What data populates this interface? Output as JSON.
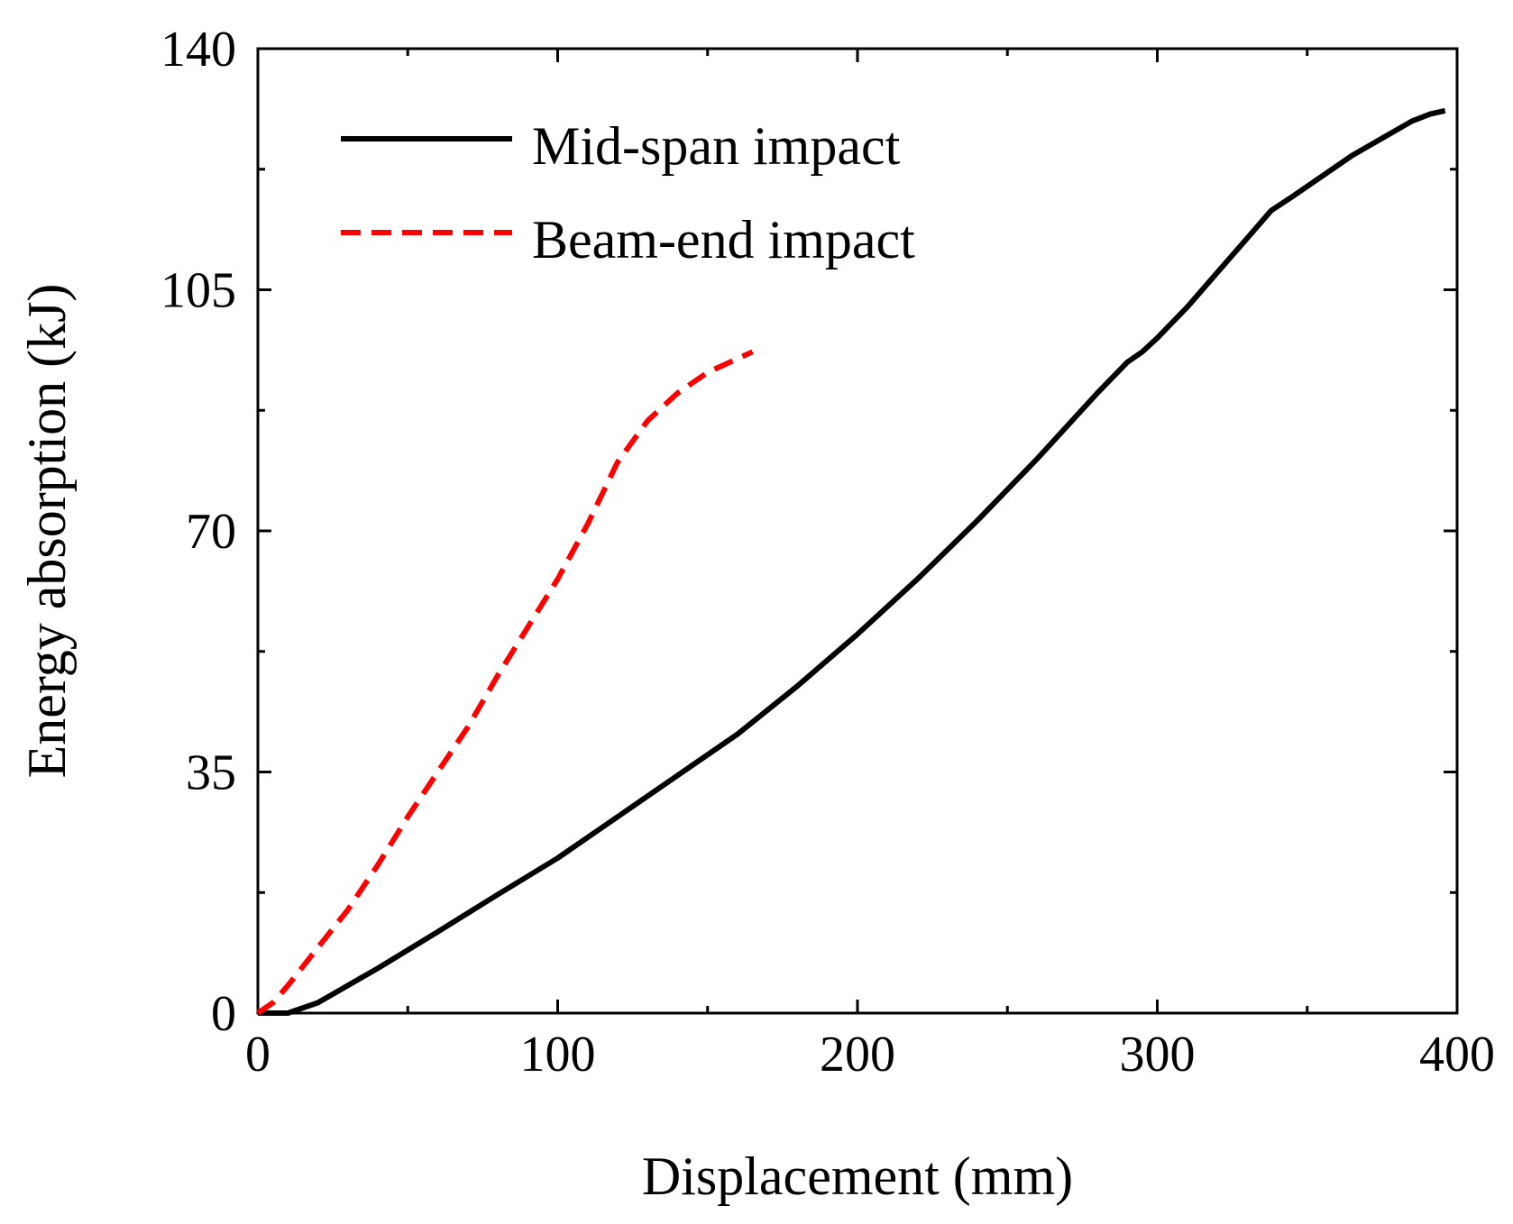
{
  "chart_data": {
    "type": "line",
    "xlabel": "Displacement (mm)",
    "ylabel": "Energy absorption (kJ)",
    "xlim": [
      0,
      400
    ],
    "ylim": [
      0,
      140
    ],
    "x_ticks": [
      0,
      100,
      200,
      300,
      400
    ],
    "y_ticks": [
      0,
      35,
      70,
      105,
      140
    ],
    "x_tick_labels": [
      "0",
      "100",
      "200",
      "300",
      "400"
    ],
    "y_tick_labels": [
      "0",
      "35",
      "70",
      "105",
      "140"
    ],
    "grid": false,
    "legend_position": "top-left",
    "series": [
      {
        "name": "Mid-span impact",
        "color": "#000000",
        "style": "solid",
        "x": [
          0,
          10,
          20,
          40,
          60,
          80,
          100,
          120,
          140,
          160,
          180,
          200,
          220,
          240,
          260,
          280,
          290,
          295,
          300,
          310,
          320,
          330,
          338,
          345,
          355,
          365,
          375,
          385,
          391,
          396
        ],
        "y": [
          0,
          0,
          1.5,
          6.5,
          11.8,
          17.2,
          22.5,
          28.5,
          34.5,
          40.5,
          47.5,
          55,
          63,
          71.5,
          80.5,
          90,
          94.5,
          96,
          98,
          102.5,
          107.5,
          112.5,
          116.5,
          118.5,
          121.5,
          124.5,
          127,
          129.5,
          130.5,
          131
        ]
      },
      {
        "name": "Beam-end impact",
        "color": "#ff0000",
        "style": "dashed",
        "x": [
          0,
          5,
          10,
          20,
          30,
          40,
          50,
          60,
          70,
          80,
          90,
          100,
          110,
          120,
          130,
          140,
          150,
          160,
          165
        ],
        "y": [
          0,
          1.5,
          4,
          9.5,
          15,
          21.5,
          28.5,
          35,
          41.5,
          49,
          56,
          63,
          71,
          80,
          86,
          90,
          93,
          95,
          96
        ]
      }
    ]
  }
}
